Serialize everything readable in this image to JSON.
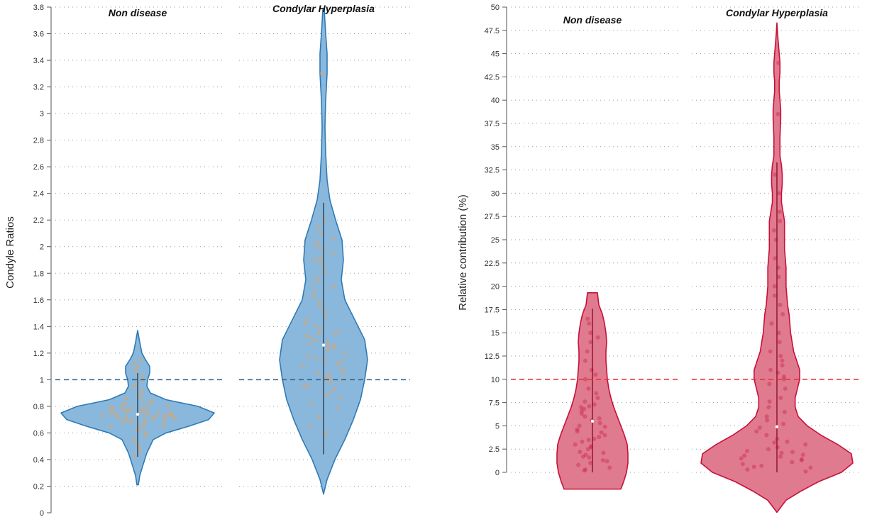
{
  "chart_data": [
    {
      "type": "violin",
      "ylabel": "Condyle Ratios",
      "ylim": [
        0,
        3.8
      ],
      "yticks": [
        "0",
        "0.2",
        "0.4",
        "0.6",
        "0.8",
        "1",
        "1.2",
        "1.4",
        "1.6",
        "1.8",
        "2",
        "2.2",
        "2.4",
        "2.6",
        "2.8",
        "3",
        "3.2",
        "3.4",
        "3.6",
        "3.8"
      ],
      "reference_line": 1,
      "reference_color": "#2c5f8a",
      "fill_color": "#8ab8dc",
      "stroke_color": "#2f7ab5",
      "point_color": "#d9a46b",
      "groups": [
        {
          "name": "Non disease",
          "median": 0.74,
          "whisker": [
            0.42,
            1.05
          ],
          "range": [
            0.21,
            1.37
          ],
          "density": [
            [
              0.21,
              1
            ],
            [
              0.28,
              3
            ],
            [
              0.35,
              7
            ],
            [
              0.45,
              13
            ],
            [
              0.55,
              22
            ],
            [
              0.6,
              40
            ],
            [
              0.65,
              72
            ],
            [
              0.7,
              100
            ],
            [
              0.75,
              108
            ],
            [
              0.8,
              85
            ],
            [
              0.85,
              40
            ],
            [
              0.9,
              18
            ],
            [
              0.95,
              13
            ],
            [
              1.0,
              14
            ],
            [
              1.05,
              17
            ],
            [
              1.1,
              17
            ],
            [
              1.15,
              11
            ],
            [
              1.2,
              6
            ],
            [
              1.28,
              3
            ],
            [
              1.37,
              0
            ]
          ],
          "points": [
            0.44,
            0.47,
            0.5,
            0.52,
            0.55,
            0.58,
            0.6,
            0.62,
            0.63,
            0.64,
            0.65,
            0.66,
            0.67,
            0.68,
            0.69,
            0.7,
            0.7,
            0.71,
            0.71,
            0.72,
            0.72,
            0.73,
            0.73,
            0.74,
            0.74,
            0.74,
            0.75,
            0.75,
            0.75,
            0.76,
            0.76,
            0.77,
            0.77,
            0.78,
            0.78,
            0.79,
            0.8,
            0.8,
            0.81,
            0.82,
            0.83,
            0.84,
            0.85,
            0.86,
            0.88,
            0.9,
            0.92,
            0.95,
            0.97,
            1.0,
            1.02,
            1.05,
            1.08,
            1.1,
            1.13,
            1.15,
            0.68,
            0.72,
            0.76,
            0.7,
            0.74,
            0.78,
            0.66,
            0.73,
            0.79,
            0.71
          ]
        },
        {
          "name": "Condylar Hyperplasia",
          "median": 1.26,
          "whisker": [
            0.44,
            2.33
          ],
          "range": [
            0.14,
            3.78
          ],
          "density": [
            [
              0.14,
              0
            ],
            [
              0.25,
              5
            ],
            [
              0.4,
              16
            ],
            [
              0.55,
              30
            ],
            [
              0.7,
              42
            ],
            [
              0.85,
              52
            ],
            [
              1.0,
              58
            ],
            [
              1.15,
              62
            ],
            [
              1.3,
              58
            ],
            [
              1.45,
              44
            ],
            [
              1.6,
              30
            ],
            [
              1.75,
              25
            ],
            [
              1.9,
              28
            ],
            [
              2.05,
              26
            ],
            [
              2.2,
              17
            ],
            [
              2.35,
              9
            ],
            [
              2.5,
              5
            ],
            [
              2.7,
              3
            ],
            [
              2.9,
              2
            ],
            [
              3.1,
              3
            ],
            [
              3.3,
              5
            ],
            [
              3.45,
              5
            ],
            [
              3.6,
              3
            ],
            [
              3.78,
              1
            ]
          ],
          "points": [
            0.6,
            0.65,
            0.72,
            0.78,
            0.82,
            0.86,
            0.9,
            0.93,
            0.96,
            0.98,
            1.0,
            1.0,
            1.01,
            1.02,
            1.04,
            1.06,
            1.08,
            1.1,
            1.12,
            1.14,
            1.16,
            1.18,
            1.2,
            1.22,
            1.24,
            1.25,
            1.26,
            1.28,
            1.3,
            1.32,
            1.33,
            1.35,
            1.36,
            1.38,
            1.4,
            1.42,
            1.45,
            1.48,
            1.52,
            1.55,
            1.58,
            1.62,
            1.66,
            1.7,
            1.73,
            1.76,
            1.8,
            1.84,
            1.88,
            1.9,
            1.92,
            1.95,
            1.98,
            2.0,
            2.03,
            2.06,
            2.1,
            2.15,
            2.2,
            3.3,
            1.15,
            1.05,
            0.95,
            1.35,
            1.27,
            0.88
          ]
        }
      ]
    },
    {
      "type": "violin",
      "ylabel": "Relative contribution (%)",
      "ylim": [
        0,
        50
      ],
      "yticks": [
        "0",
        "2.5",
        "5",
        "7.5",
        "10",
        "12.5",
        "15",
        "17.5",
        "20",
        "22.5",
        "25",
        "27.5",
        "30",
        "32.5",
        "35",
        "37.5",
        "40",
        "42.5",
        "45",
        "47.5",
        "50"
      ],
      "reference_line": 10,
      "reference_color": "#e8313c",
      "fill_color": "#e07a8e",
      "stroke_color": "#c8103a",
      "point_color": "#c9284f",
      "groups": [
        {
          "name": "Non disease",
          "median": 5.5,
          "whisker": [
            0,
            17.6
          ],
          "range": [
            -1.8,
            19.3
          ],
          "density": [
            [
              -1.8,
              80
            ],
            [
              -1,
              88
            ],
            [
              0,
              96
            ],
            [
              1,
              100
            ],
            [
              2,
              100
            ],
            [
              3,
              98
            ],
            [
              4,
              90
            ],
            [
              5,
              80
            ],
            [
              6,
              70
            ],
            [
              7,
              60
            ],
            [
              8,
              52
            ],
            [
              9,
              46
            ],
            [
              10,
              42
            ],
            [
              11,
              40
            ],
            [
              12,
              38
            ],
            [
              13,
              38
            ],
            [
              14,
              40
            ],
            [
              15,
              38
            ],
            [
              16,
              34
            ],
            [
              17,
              28
            ],
            [
              18,
              18
            ],
            [
              19.3,
              14
            ]
          ],
          "points": [
            0.2,
            0.5,
            0.8,
            1,
            1.3,
            1.6,
            1.9,
            2.2,
            2.5,
            2.8,
            3,
            3.3,
            3.6,
            4,
            4.3,
            4.6,
            5,
            5.3,
            5.6,
            6,
            6.3,
            6.6,
            7,
            7.3,
            7.6,
            8,
            8.5,
            9,
            10,
            10.5,
            11,
            12,
            13,
            14,
            14.5,
            15,
            16,
            16.5,
            1.2,
            2.7,
            3.8,
            4.9,
            6.8,
            0.3,
            2.1,
            5.8,
            7.1,
            3.5,
            1.7,
            4.4
          ]
        },
        {
          "name": "Condylar Hyperplasia",
          "median": 4.9,
          "whisker": [
            0,
            33.3
          ],
          "range": [
            -4.3,
            48.3
          ],
          "density": [
            [
              -4.3,
              0
            ],
            [
              -3,
              12
            ],
            [
              -2,
              32
            ],
            [
              -1,
              55
            ],
            [
              0,
              85
            ],
            [
              1,
              100
            ],
            [
              2,
              98
            ],
            [
              3,
              80
            ],
            [
              4,
              58
            ],
            [
              5,
              40
            ],
            [
              6,
              28
            ],
            [
              7,
              24
            ],
            [
              8,
              24
            ],
            [
              9,
              27
            ],
            [
              10,
              30
            ],
            [
              11,
              30
            ],
            [
              12,
              26
            ],
            [
              13,
              22
            ],
            [
              15,
              18
            ],
            [
              17,
              16
            ],
            [
              18,
              14
            ],
            [
              20,
              12
            ],
            [
              22,
              12
            ],
            [
              24,
              10
            ],
            [
              26,
              10
            ],
            [
              27,
              10
            ],
            [
              28,
              8
            ],
            [
              29,
              6
            ],
            [
              30,
              6
            ],
            [
              31,
              7
            ],
            [
              32,
              7
            ],
            [
              33,
              6
            ],
            [
              34,
              4
            ],
            [
              35,
              4
            ],
            [
              36,
              4
            ],
            [
              38,
              5
            ],
            [
              39,
              5
            ],
            [
              40,
              4
            ],
            [
              41,
              3
            ],
            [
              42,
              3
            ],
            [
              43,
              4
            ],
            [
              44,
              4
            ],
            [
              45,
              3
            ],
            [
              46,
              2
            ],
            [
              47,
              1
            ],
            [
              48.3,
              0
            ]
          ],
          "points": [
            0.1,
            0.3,
            0.5,
            0.7,
            0.9,
            1.1,
            1.3,
            1.5,
            1.7,
            1.9,
            2.1,
            2.3,
            2.5,
            2.7,
            3,
            3.3,
            3.6,
            4,
            4.4,
            4.8,
            5.2,
            5.6,
            6,
            6.5,
            7,
            7.6,
            8,
            9,
            9.5,
            10,
            10.3,
            10.7,
            11,
            11.5,
            12,
            12.5,
            13,
            14,
            15,
            16,
            17,
            18,
            19,
            20,
            21,
            22,
            23,
            25,
            26,
            27,
            28,
            30,
            32,
            38.5,
            44,
            1.4,
            2.2,
            0.6,
            3.2,
            1.8
          ]
        }
      ]
    }
  ]
}
